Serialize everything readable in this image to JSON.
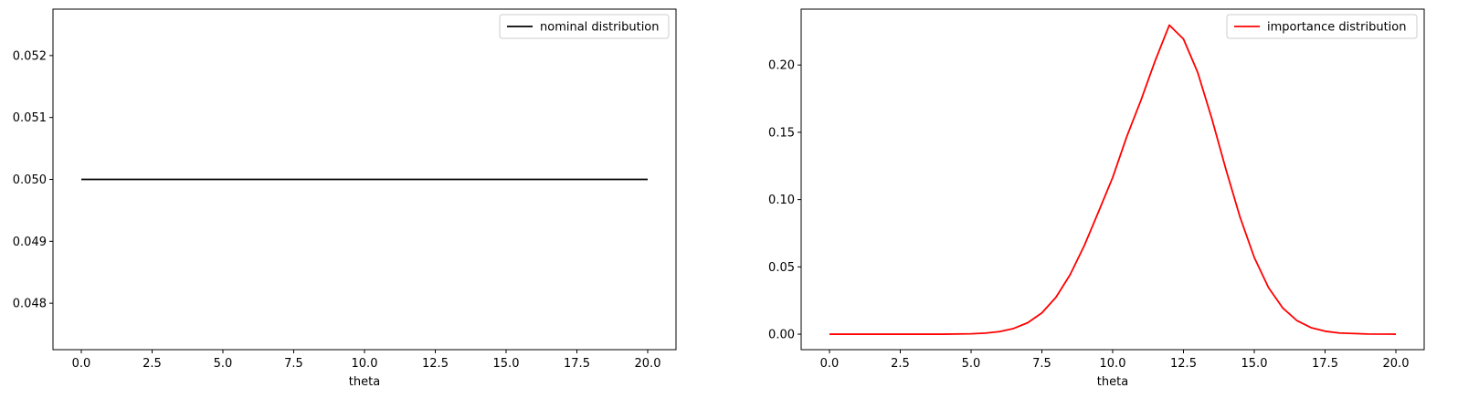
{
  "chart_data": [
    {
      "type": "line",
      "xlabel": "theta",
      "ylabel": "",
      "xlim": [
        -1.0,
        21.0
      ],
      "ylim": [
        0.04725,
        0.05275
      ],
      "xticks": [
        0.0,
        2.5,
        5.0,
        7.5,
        10.0,
        12.5,
        15.0,
        17.5,
        20.0
      ],
      "xtick_labels": [
        "0.0",
        "2.5",
        "5.0",
        "7.5",
        "10.0",
        "12.5",
        "15.0",
        "17.5",
        "20.0"
      ],
      "yticks": [
        0.048,
        0.049,
        0.05,
        0.051,
        0.052
      ],
      "ytick_labels": [
        "0.048",
        "0.049",
        "0.050",
        "0.051",
        "0.052"
      ],
      "legend_position": "upper right",
      "series": [
        {
          "name": "nominal distribution",
          "color": "#000000",
          "x": [
            0,
            20
          ],
          "y": [
            0.05,
            0.05
          ]
        }
      ]
    },
    {
      "type": "line",
      "xlabel": "theta",
      "ylabel": "",
      "xlim": [
        -1.0,
        21.0
      ],
      "ylim": [
        -0.0115,
        0.2415
      ],
      "xticks": [
        0.0,
        2.5,
        5.0,
        7.5,
        10.0,
        12.5,
        15.0,
        17.5,
        20.0
      ],
      "xtick_labels": [
        "0.0",
        "2.5",
        "5.0",
        "7.5",
        "10.0",
        "12.5",
        "15.0",
        "17.5",
        "20.0"
      ],
      "yticks": [
        0.0,
        0.05,
        0.1,
        0.15,
        0.2
      ],
      "ytick_labels": [
        "0.00",
        "0.05",
        "0.10",
        "0.15",
        "0.20"
      ],
      "legend_position": "upper right",
      "series": [
        {
          "name": "importance distribution",
          "color": "#ff0000",
          "x": [
            0,
            1,
            2,
            3,
            4,
            5,
            5.5,
            6,
            6.5,
            7,
            7.5,
            8,
            8.5,
            9,
            9.5,
            10,
            10.5,
            11,
            11.5,
            12,
            12.5,
            13,
            13.5,
            14,
            14.5,
            15,
            15.5,
            16,
            16.5,
            17,
            17.5,
            18,
            19,
            20
          ],
          "y": [
            0.0,
            0.0,
            0.0,
            0.0,
            0.0,
            0.0003,
            0.0008,
            0.0019,
            0.0042,
            0.0085,
            0.0158,
            0.0275,
            0.0443,
            0.0659,
            0.0909,
            0.1164,
            0.1469,
            0.1739,
            0.2031,
            0.2296,
            0.2193,
            0.1946,
            0.1603,
            0.1224,
            0.0868,
            0.057,
            0.0347,
            0.0196,
            0.0102,
            0.0049,
            0.0022,
            0.0009,
            0.0001,
            0.0
          ]
        }
      ]
    }
  ]
}
